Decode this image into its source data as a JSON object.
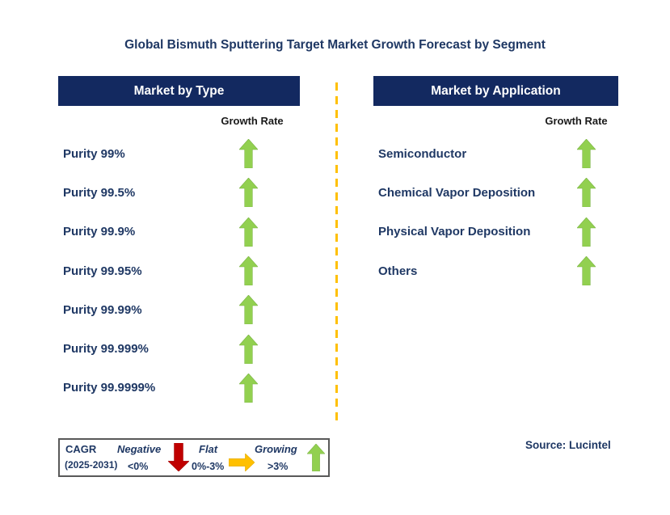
{
  "title": "Global Bismuth Sputtering Target Market Growth Forecast by Segment",
  "source": "Source: Lucintel",
  "columns": [
    {
      "header": "Market by Type",
      "growth_rate_label": "Growth Rate",
      "items": [
        {
          "label": "Purity 99%",
          "trend": "up",
          "growth": "Growing (>3%)"
        },
        {
          "label": "Purity 99.5%",
          "trend": "up",
          "growth": "Growing (>3%)"
        },
        {
          "label": "Purity 99.9%",
          "trend": "up",
          "growth": "Growing (>3%)"
        },
        {
          "label": "Purity 99.95%",
          "trend": "up",
          "growth": "Growing (>3%)"
        },
        {
          "label": "Purity 99.99%",
          "trend": "up",
          "growth": "Growing (>3%)"
        },
        {
          "label": "Purity 99.999%",
          "trend": "up",
          "growth": "Growing (>3%)"
        },
        {
          "label": "Purity 99.9999%",
          "trend": "up",
          "growth": "Growing (>3%)"
        }
      ]
    },
    {
      "header": "Market by Application",
      "growth_rate_label": "Growth Rate",
      "items": [
        {
          "label": "Semiconductor",
          "trend": "up",
          "growth": "Growing (>3%)"
        },
        {
          "label": "Chemical Vapor Deposition",
          "trend": "up",
          "growth": "Growing (>3%)"
        },
        {
          "label": "Physical Vapor Deposition",
          "trend": "up",
          "growth": "Growing (>3%)"
        },
        {
          "label": "Others",
          "trend": "up",
          "growth": "Growing (>3%)"
        }
      ]
    }
  ],
  "legend": {
    "cagr_label": "CAGR",
    "period": "(2025-2031)",
    "entries": [
      {
        "label": "Negative",
        "range": "<0%",
        "trend": "down"
      },
      {
        "label": "Flat",
        "range": "0%-3%",
        "trend": "right"
      },
      {
        "label": "Growing",
        "range": ">3%",
        "trend": "up"
      }
    ]
  },
  "colors": {
    "navy_text": "#1F3864",
    "header_bg": "#132960",
    "growing_green": "#92D050",
    "flat_yellow": "#FFC000",
    "negative_red": "#C00000",
    "divider_yellow": "#FFC000",
    "growth_rate_text": "#1A1A1A",
    "legend_border": "#595959"
  },
  "chart_data": {
    "type": "table",
    "title": "Global Bismuth Sputtering Target Market Growth Forecast by Segment",
    "cagr_period": "2025-2031",
    "legend": [
      {
        "label": "Negative",
        "range": "<0%",
        "arrow": "down",
        "color": "#C00000"
      },
      {
        "label": "Flat",
        "range": "0%-3%",
        "arrow": "right",
        "color": "#FFC000"
      },
      {
        "label": "Growing",
        "range": ">3%",
        "arrow": "up",
        "color": "#92D050"
      }
    ],
    "groups": [
      {
        "name": "Market by Type",
        "value_label": "Growth Rate",
        "categories": [
          "Purity 99%",
          "Purity 99.5%",
          "Purity 99.9%",
          "Purity 99.95%",
          "Purity 99.99%",
          "Purity 99.999%",
          "Purity 99.9999%"
        ],
        "values": [
          "Growing (>3%)",
          "Growing (>3%)",
          "Growing (>3%)",
          "Growing (>3%)",
          "Growing (>3%)",
          "Growing (>3%)",
          "Growing (>3%)"
        ]
      },
      {
        "name": "Market by Application",
        "value_label": "Growth Rate",
        "categories": [
          "Semiconductor",
          "Chemical Vapor Deposition",
          "Physical Vapor Deposition",
          "Others"
        ],
        "values": [
          "Growing (>3%)",
          "Growing (>3%)",
          "Growing (>3%)",
          "Growing (>3%)"
        ]
      }
    ],
    "source": "Source: Lucintel",
    "grid": false,
    "legend_position": "bottom-left"
  }
}
